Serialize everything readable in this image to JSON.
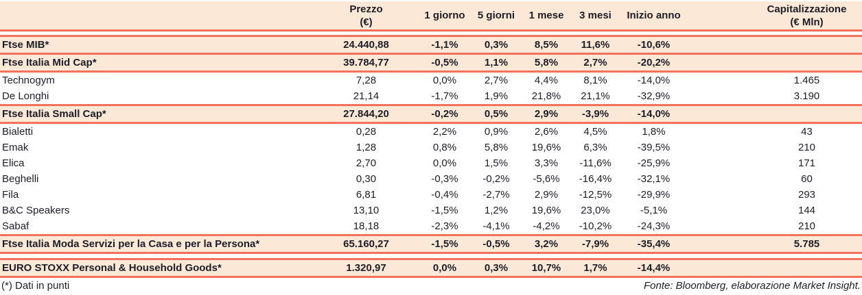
{
  "colors": {
    "accent": "#f3705a",
    "row_highlight": "#fce8d7",
    "text": "#1d1d26"
  },
  "table": {
    "columns": {
      "name": {
        "label": ""
      },
      "prezzo": {
        "label": "Prezzo",
        "label2": "(€)"
      },
      "d1": {
        "label": "1 giorno"
      },
      "d5": {
        "label": "5 giorni"
      },
      "m1": {
        "label": "1 mese"
      },
      "m3": {
        "label": "3 mesi"
      },
      "ytd": {
        "label": "Inizio anno"
      },
      "cap": {
        "label": "Capitalizzazione",
        "label2": "(€ Mln)"
      }
    },
    "rows": [
      {
        "name": "Ftse MIB*",
        "prezzo": "24.440,88",
        "d1": "-1,1%",
        "d5": "0,3%",
        "m1": "8,5%",
        "m3": "11,6%",
        "ytd": "-10,6%",
        "cap": "",
        "style": "index",
        "rule_below": true
      },
      {
        "name": "Ftse Italia Mid Cap*",
        "prezzo": "39.784,77",
        "d1": "-0,5%",
        "d5": "1,1%",
        "m1": "5,8%",
        "m3": "2,7%",
        "ytd": "-20,2%",
        "cap": "",
        "style": "index",
        "rule_below": true
      },
      {
        "name": "Technogym",
        "prezzo": "7,28",
        "d1": "0,0%",
        "d5": "2,7%",
        "m1": "4,4%",
        "m3": "8,1%",
        "ytd": "-14,0%",
        "cap": "1.465",
        "style": "stock"
      },
      {
        "name": "De Longhi",
        "prezzo": "21,14",
        "d1": "-1,7%",
        "d5": "1,9%",
        "m1": "21,8%",
        "m3": "21,1%",
        "ytd": "-32,9%",
        "cap": "3.190",
        "style": "stock"
      },
      {
        "name": "Ftse Italia Small Cap*",
        "prezzo": "27.844,20",
        "d1": "-0,2%",
        "d5": "0,5%",
        "m1": "2,9%",
        "m3": "-3,9%",
        "ytd": "-14,0%",
        "cap": "",
        "style": "index",
        "rule_above": true,
        "rule_below": true
      },
      {
        "name": "Bialetti",
        "prezzo": "0,28",
        "d1": "2,2%",
        "d5": "0,9%",
        "m1": "2,6%",
        "m3": "4,5%",
        "ytd": "1,8%",
        "cap": "43",
        "style": "stock"
      },
      {
        "name": "Emak",
        "prezzo": "1,28",
        "d1": "0,8%",
        "d5": "5,8%",
        "m1": "19,6%",
        "m3": "6,3%",
        "ytd": "-39,5%",
        "cap": "210",
        "style": "stock"
      },
      {
        "name": "Elica",
        "prezzo": "2,70",
        "d1": "0,0%",
        "d5": "1,5%",
        "m1": "3,3%",
        "m3": "-11,6%",
        "ytd": "-25,9%",
        "cap": "171",
        "style": "stock"
      },
      {
        "name": "Beghelli",
        "prezzo": "0,30",
        "d1": "-0,3%",
        "d5": "-0,2%",
        "m1": "-5,6%",
        "m3": "-16,4%",
        "ytd": "-32,1%",
        "cap": "60",
        "style": "stock"
      },
      {
        "name": "Fila",
        "prezzo": "6,81",
        "d1": "-0,4%",
        "d5": "-2,7%",
        "m1": "2,9%",
        "m3": "-12,5%",
        "ytd": "-29,9%",
        "cap": "293",
        "style": "stock"
      },
      {
        "name": "B&C Speakers",
        "prezzo": "13,10",
        "d1": "-1,5%",
        "d5": "1,2%",
        "m1": "19,6%",
        "m3": "23,0%",
        "ytd": "-5,1%",
        "cap": "144",
        "style": "stock"
      },
      {
        "name": "Sabaf",
        "prezzo": "18,18",
        "d1": "-2,3%",
        "d5": "-4,1%",
        "m1": "-4,2%",
        "m3": "-10,2%",
        "ytd": "-24,3%",
        "cap": "210",
        "style": "stock"
      },
      {
        "name": "Ftse Italia Moda Servizi per la Casa e per la Persona*",
        "prezzo": "65.160,27",
        "d1": "-1,5%",
        "d5": "-0,5%",
        "m1": "3,2%",
        "m3": "-7,9%",
        "ytd": "-35,4%",
        "cap": "5.785",
        "style": "index",
        "rule_above": true,
        "rule_below": true
      },
      {
        "name": "EURO STOXX Personal & Household Goods*",
        "prezzo": "1.320,97",
        "d1": "0,0%",
        "d5": "0,3%",
        "m1": "10,7%",
        "m3": "1,7%",
        "ytd": "-14,4%",
        "cap": "",
        "style": "index",
        "spacer_above": true,
        "rule_above": true,
        "rule_below": true
      }
    ]
  },
  "footer": {
    "note": "(*) Dati in punti",
    "source": "Fonte: Bloomberg, elaborazione Market Insight."
  }
}
